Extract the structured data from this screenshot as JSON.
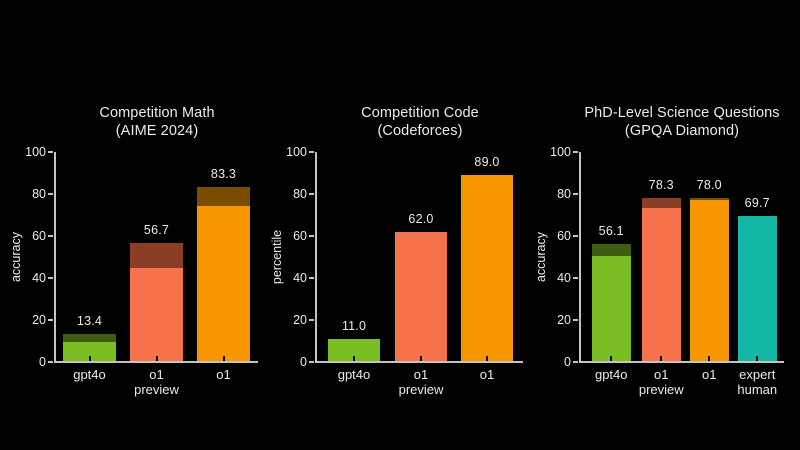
{
  "page": {
    "background": "#000000"
  },
  "colors": {
    "text": "#EDEBE3",
    "axis": "#C6C4BE",
    "xtick": "#000000",
    "green": "#7BBE23",
    "green_dark": "#3F5D10",
    "salmon": "#F5724A",
    "salmon_dark": "#8B3D26",
    "orange": "#F89600",
    "orange_dark": "#7A4E02",
    "teal": "#14B8A6",
    "teal_dark": "#14B8A6"
  },
  "chart_data": [
    {
      "type": "bar",
      "title_lines": [
        "Competition Math",
        "(AIME 2024)"
      ],
      "ylabel": "accuracy",
      "ylim": [
        0,
        100
      ],
      "yticks": [
        0,
        20,
        40,
        60,
        80,
        100
      ],
      "legend": "none",
      "grid": false,
      "bars": [
        {
          "category_lines": [
            "gpt4o"
          ],
          "value": 13.4,
          "value_label": "13.4",
          "solid_value": 9.3,
          "color": "green"
        },
        {
          "category_lines": [
            "o1",
            "preview"
          ],
          "value": 56.7,
          "value_label": "56.7",
          "solid_value": 44.6,
          "color": "salmon"
        },
        {
          "category_lines": [
            "o1"
          ],
          "value": 83.3,
          "value_label": "83.3",
          "solid_value": 74.4,
          "color": "orange"
        }
      ]
    },
    {
      "type": "bar",
      "title_lines": [
        "Competition Code",
        "(Codeforces)"
      ],
      "ylabel": "percentile",
      "ylim": [
        0,
        100
      ],
      "yticks": [
        0,
        20,
        40,
        60,
        80,
        100
      ],
      "legend": "none",
      "grid": false,
      "bars": [
        {
          "category_lines": [
            "gpt4o"
          ],
          "value": 11.0,
          "value_label": "11.0",
          "solid_value": 11.0,
          "color": "green"
        },
        {
          "category_lines": [
            "o1",
            "preview"
          ],
          "value": 62.0,
          "value_label": "62.0",
          "solid_value": 62.0,
          "color": "salmon"
        },
        {
          "category_lines": [
            "o1"
          ],
          "value": 89.0,
          "value_label": "89.0",
          "solid_value": 89.0,
          "color": "orange"
        }
      ]
    },
    {
      "type": "bar",
      "title_lines": [
        "PhD-Level Science Questions",
        "(GPQA Diamond)"
      ],
      "ylabel": "accuracy",
      "ylim": [
        0,
        100
      ],
      "yticks": [
        0,
        20,
        40,
        60,
        80,
        100
      ],
      "legend": "none",
      "grid": false,
      "bars": [
        {
          "category_lines": [
            "gpt4o"
          ],
          "value": 56.1,
          "value_label": "56.1",
          "solid_value": 50.6,
          "color": "green"
        },
        {
          "category_lines": [
            "o1",
            "preview"
          ],
          "value": 78.3,
          "value_label": "78.3",
          "solid_value": 73.3,
          "color": "salmon"
        },
        {
          "category_lines": [
            "o1"
          ],
          "value": 78.0,
          "value_label": "78.0",
          "solid_value": 77.3,
          "color": "orange"
        },
        {
          "category_lines": [
            "expert",
            "human"
          ],
          "value": 69.7,
          "value_label": "69.7",
          "solid_value": 69.7,
          "color": "teal"
        }
      ]
    }
  ]
}
